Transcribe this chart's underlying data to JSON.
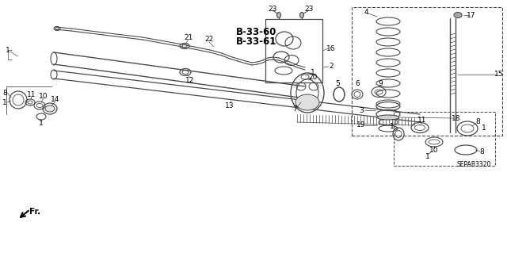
{
  "bg_color": "#ffffff",
  "line_color": "#4a4a4a",
  "text_color": "#000000",
  "diagram_code": "SEPAB3320",
  "fr_label": "Fr.",
  "bold_labels": [
    "B-33-60",
    "B-33-61"
  ],
  "font_size": 6.5,
  "bold_font_size": 8.5
}
